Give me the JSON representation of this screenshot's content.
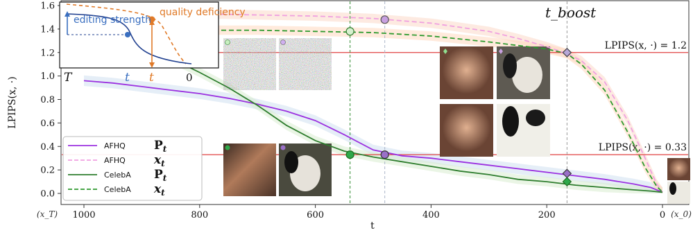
{
  "chart_data": {
    "type": "line",
    "title": "",
    "xlabel": "t",
    "ylabel": "LPIPS(x, ·)",
    "xlim": [
      1000,
      0
    ],
    "ylim": [
      0.0,
      1.6
    ],
    "x_ticks": [
      1000,
      800,
      600,
      400,
      200,
      0
    ],
    "x_tick_labels": [
      "1000",
      "800",
      "600",
      "400",
      "200",
      "0"
    ],
    "x_end_labels": {
      "left": "(x_T)",
      "right": "(x_0)"
    },
    "y_ticks": [
      0.0,
      0.2,
      0.4,
      0.6,
      0.8,
      1.0,
      1.2,
      1.4,
      1.6
    ],
    "y_tick_labels": [
      "0.0",
      "0.2",
      "0.4",
      "0.6",
      "0.8",
      "1.0",
      "1.2",
      "1.4",
      "1.6"
    ],
    "grid": false,
    "legend_position": "bottom-left",
    "series": [
      {
        "name": "AFHQ",
        "symbol": "P_t",
        "color": "#9b30e0",
        "style": "solid",
        "band": "#cfe0f0",
        "x": [
          1000,
          950,
          900,
          850,
          800,
          750,
          700,
          650,
          600,
          550,
          500,
          450,
          400,
          350,
          300,
          250,
          200,
          150,
          100,
          50,
          20,
          0
        ],
        "y": [
          0.96,
          0.94,
          0.91,
          0.88,
          0.85,
          0.81,
          0.76,
          0.7,
          0.62,
          0.5,
          0.37,
          0.32,
          0.3,
          0.27,
          0.24,
          0.21,
          0.18,
          0.15,
          0.12,
          0.08,
          0.05,
          0.01
        ]
      },
      {
        "name": "AFHQ",
        "symbol": "x_t",
        "color": "#f0a0e0",
        "style": "dashed",
        "band": "#fbd8c8",
        "x": [
          1000,
          900,
          800,
          700,
          600,
          500,
          400,
          300,
          250,
          200,
          165,
          140,
          100,
          60,
          30,
          10,
          0
        ],
        "y": [
          1.55,
          1.54,
          1.53,
          1.52,
          1.51,
          1.49,
          1.45,
          1.38,
          1.32,
          1.25,
          1.19,
          1.13,
          0.95,
          0.62,
          0.3,
          0.08,
          0.01
        ]
      },
      {
        "name": "CelebA",
        "symbol": "P_t",
        "color": "#2e7d2e",
        "style": "solid",
        "band": "#d8ecd0",
        "x": [
          1000,
          950,
          900,
          850,
          800,
          750,
          700,
          650,
          600,
          550,
          500,
          450,
          400,
          350,
          300,
          250,
          200,
          150,
          100,
          50,
          20,
          0
        ],
        "y": [
          1.52,
          1.4,
          1.26,
          1.15,
          1.03,
          0.9,
          0.75,
          0.58,
          0.45,
          0.36,
          0.31,
          0.27,
          0.23,
          0.19,
          0.16,
          0.12,
          0.1,
          0.07,
          0.05,
          0.03,
          0.02,
          0.01
        ]
      },
      {
        "name": "CelebA",
        "symbol": "x_t",
        "color": "#2e9a2e",
        "style": "dashed",
        "band": "#ffd9c0",
        "x": [
          1000,
          900,
          800,
          700,
          600,
          500,
          400,
          300,
          250,
          200,
          165,
          140,
          100,
          60,
          30,
          10,
          0
        ],
        "y": [
          1.4,
          1.39,
          1.39,
          1.39,
          1.38,
          1.37,
          1.34,
          1.29,
          1.26,
          1.23,
          1.19,
          1.1,
          0.88,
          0.52,
          0.22,
          0.06,
          0.01
        ]
      }
    ],
    "reference_lines": [
      {
        "y": 1.2,
        "label": "LPIPS(x, ·) = 1.2",
        "color": "#e04040"
      },
      {
        "y": 0.33,
        "label": "LPIPS(x, ·) = 0.33",
        "color": "#e04040"
      }
    ],
    "vertical_lines": [
      {
        "x": 540,
        "color": "#2e8b2e"
      },
      {
        "x": 480,
        "color": "#aab4c8"
      },
      {
        "x": 165,
        "color": "#999999"
      }
    ],
    "markers": [
      {
        "x": 540,
        "y": 1.38,
        "shape": "circle",
        "fill": "#d8f0d0",
        "stroke": "#2e7d2e"
      },
      {
        "x": 480,
        "y": 1.48,
        "shape": "circle",
        "fill": "#c8a0e0",
        "stroke": "#555"
      },
      {
        "x": 540,
        "y": 0.33,
        "shape": "circle",
        "fill": "#2ea84a",
        "stroke": "#1c6b1c"
      },
      {
        "x": 480,
        "y": 0.33,
        "shape": "circle",
        "fill": "#9a70c8",
        "stroke": "#333"
      },
      {
        "x": 165,
        "y": 1.2,
        "shape": "diamond",
        "fill": "#b8a8d8",
        "stroke": "#333"
      },
      {
        "x": 165,
        "y": 0.17,
        "shape": "diamond",
        "fill": "#9a70c8",
        "stroke": "#333"
      },
      {
        "x": 165,
        "y": 0.1,
        "shape": "diamond",
        "fill": "#2ea84a",
        "stroke": "#1c6b1c"
      }
    ],
    "annotations": [
      "t_boost"
    ],
    "inset": {
      "labels": [
        "editing strength",
        "quality deficiency"
      ],
      "axis_labels": [
        "T",
        "t",
        "t",
        "0"
      ],
      "colors": {
        "editing": "#3a6fc0",
        "quality": "#e07a28",
        "curve": "#1f3f8f"
      }
    }
  }
}
